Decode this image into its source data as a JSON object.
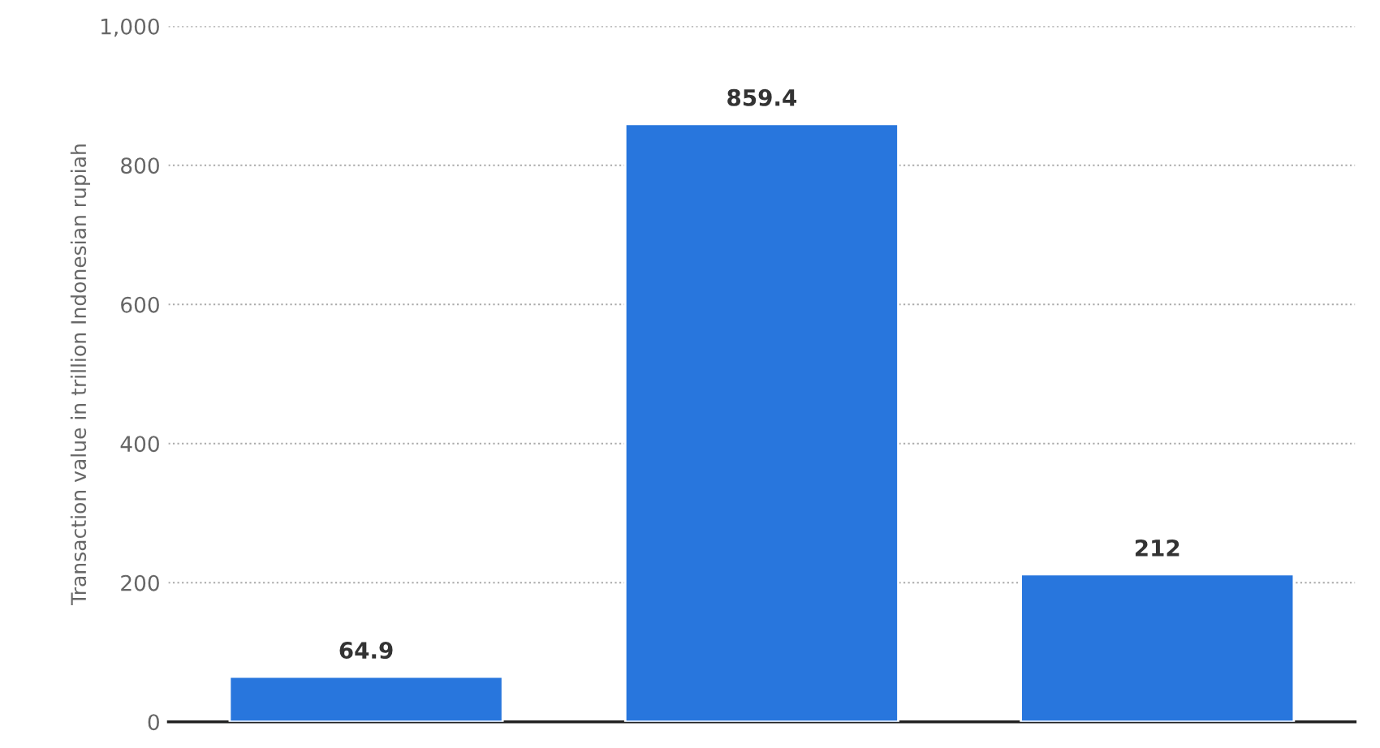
{
  "chart_data": {
    "type": "bar",
    "ylabel": "Transaction value in trillion Indonesian rupiah",
    "categories": [
      null,
      null,
      null
    ],
    "values": [
      64.9,
      859.4,
      212
    ],
    "color": "#2876dd",
    "ylim": [
      0,
      1000
    ],
    "yticks": [
      0,
      200,
      400,
      600,
      800,
      {
        "value": 1000,
        "label": "1,000"
      }
    ],
    "grid": "y",
    "data_labels": true,
    "tick_labels": "y"
  }
}
